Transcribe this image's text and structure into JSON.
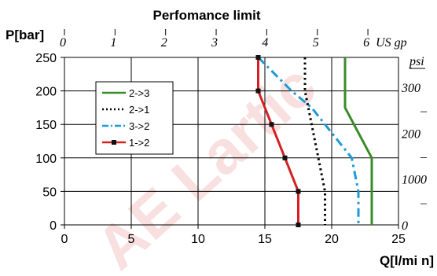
{
  "chart_data": {
    "type": "line",
    "title": "Perfomance limit",
    "ylabel": "P[bar]",
    "xlabel": "Q[l/mi n]",
    "xlim": [
      0,
      25
    ],
    "ylim": [
      0,
      250
    ],
    "x_ticks": [
      "0",
      "5",
      "10",
      "15",
      "20",
      "25"
    ],
    "y_ticks": [
      "0",
      "50",
      "100",
      "150",
      "200",
      "250"
    ],
    "top_axis": {
      "unit_label": "US gp",
      "ticks": [
        "0",
        "1",
        "2",
        "3",
        "4",
        "5",
        "6"
      ]
    },
    "right_axis": {
      "unit_label": "psi",
      "ticks": [
        "300",
        "–",
        "200",
        "–",
        "1000",
        "–",
        "0"
      ]
    },
    "grid": true,
    "legend_position": "upper-left",
    "series": [
      {
        "name": "2->3",
        "color": "#3a8a2a",
        "style": "solid",
        "points": [
          [
            21.0,
            250
          ],
          [
            21.0,
            200
          ],
          [
            21.0,
            175
          ],
          [
            23.0,
            100
          ],
          [
            23.0,
            0
          ]
        ]
      },
      {
        "name": "2->1",
        "color": "#000000",
        "style": "dotted",
        "points": [
          [
            18.0,
            250
          ],
          [
            18.0,
            200
          ],
          [
            18.5,
            150
          ],
          [
            19.0,
            100
          ],
          [
            19.5,
            50
          ],
          [
            19.5,
            0
          ]
        ]
      },
      {
        "name": "3->2",
        "color": "#1b9ad6",
        "style": "dashdot",
        "points": [
          [
            14.5,
            250
          ],
          [
            17.0,
            200
          ],
          [
            18.5,
            175
          ],
          [
            20.5,
            125
          ],
          [
            21.5,
            100
          ],
          [
            22.0,
            50
          ],
          [
            22.0,
            0
          ]
        ]
      },
      {
        "name": "1->2",
        "color": "#d42020",
        "style": "solid-marker",
        "points": [
          [
            14.5,
            250
          ],
          [
            14.5,
            200
          ],
          [
            15.5,
            150
          ],
          [
            16.5,
            100
          ],
          [
            17.5,
            50
          ],
          [
            17.5,
            0
          ]
        ]
      }
    ]
  },
  "watermark": "AE Lartic"
}
